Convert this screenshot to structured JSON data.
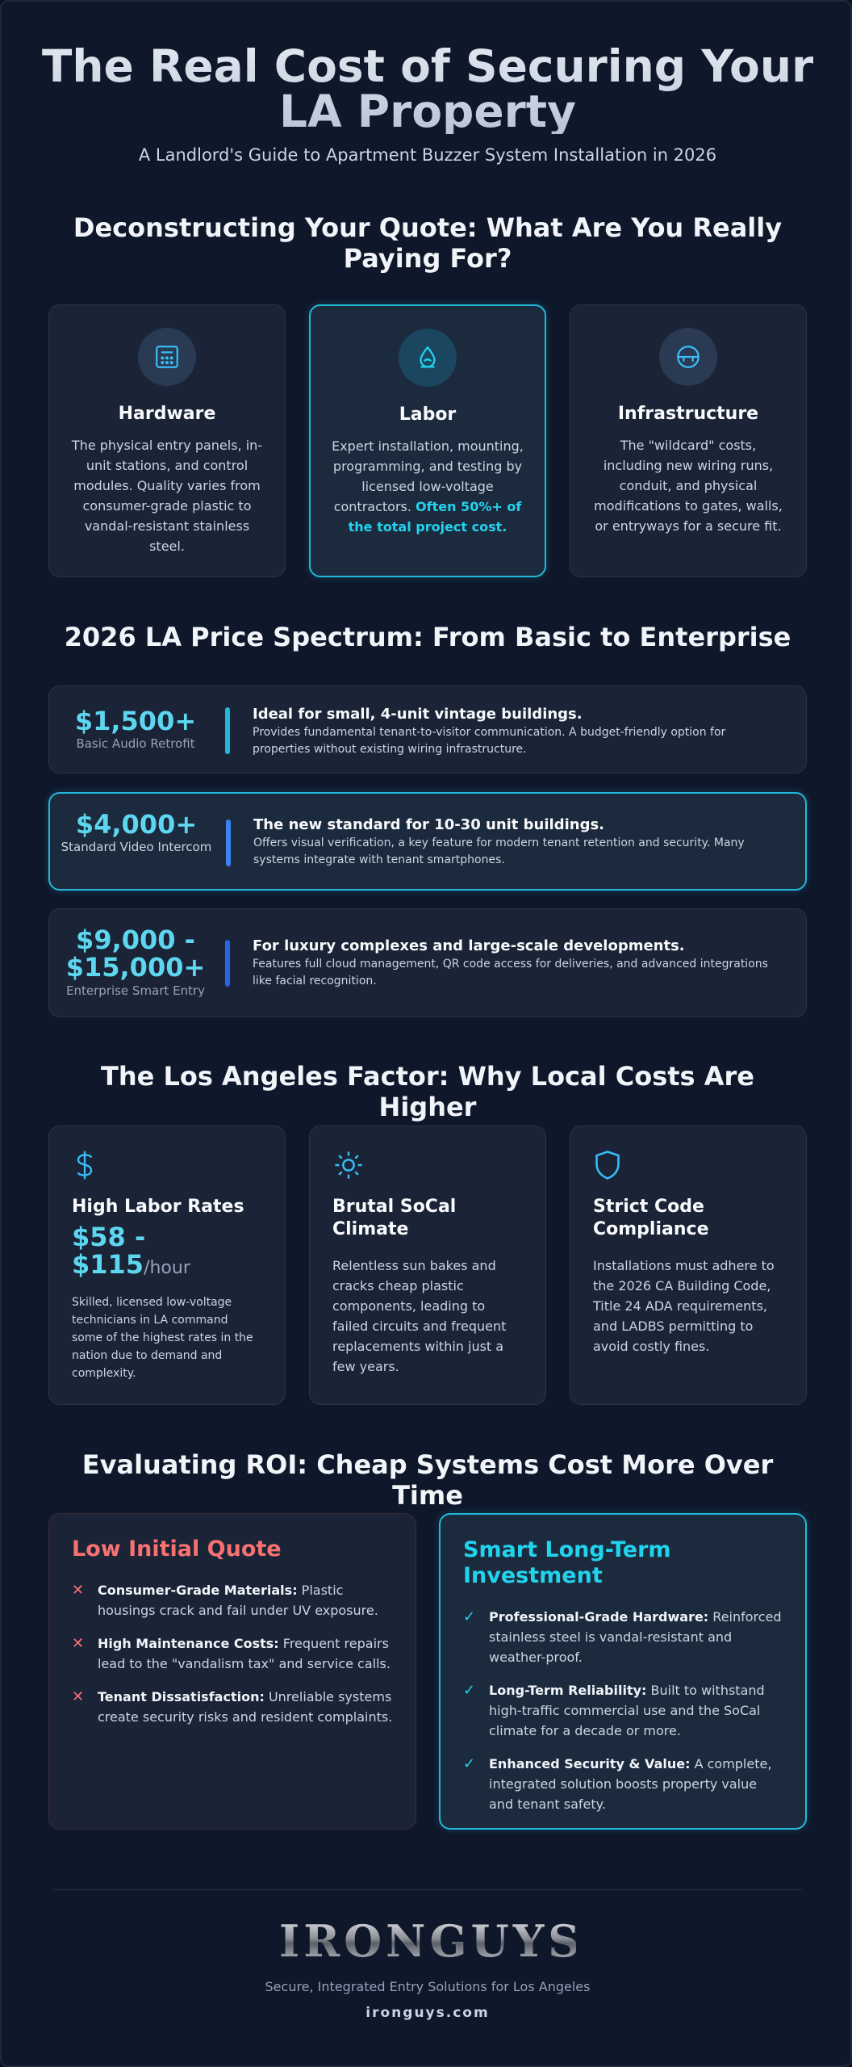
{
  "header": {
    "title": "The Real Cost of Securing Your LA Property",
    "subtitle": "A Landlord's Guide to Apartment Buzzer System Installation in 2026"
  },
  "quote_section": {
    "heading": "Deconstructing Your Quote: What Are You Really Paying For?",
    "cards": [
      {
        "icon": "keypad-icon",
        "title": "Hardware",
        "desc": "The physical entry panels, in-unit stations, and control modules. Quality varies from consumer-grade plastic to vandal-resistant stainless steel.",
        "emphasis": ""
      },
      {
        "icon": "labor-icon",
        "title": "Labor",
        "desc": "Expert installation, mounting, programming, and testing by licensed low-voltage contractors. ",
        "emphasis": "Often 50%+ of the total project cost."
      },
      {
        "icon": "infrastructure-icon",
        "title": "Infrastructure",
        "desc": "The \"wildcard\" costs, including new wiring runs, conduit, and physical modifications to gates, walls, or entryways for a secure fit.",
        "emphasis": ""
      }
    ]
  },
  "price_section": {
    "heading": "2026 LA Price Spectrum: From Basic to Enterprise",
    "tiers": [
      {
        "price": "$1,500+",
        "label": "Basic Audio Retrofit",
        "headline": "Ideal for small, 4-unit vintage buildings.",
        "desc": "Provides fundamental tenant-to-visitor communication. A budget-friendly option for properties without existing wiring infrastructure.",
        "bar_color": "#22b8d8"
      },
      {
        "price": "$4,000+",
        "label": "Standard Video Intercom",
        "headline": "The new standard for 10-30 unit buildings.",
        "desc": "Offers visual verification, a key feature for modern tenant retention and security. Many systems integrate with tenant smartphones.",
        "bar_color": "#3b82f6"
      },
      {
        "price": "$9,000 - $15,000+",
        "label": "Enterprise Smart Entry",
        "headline": "For luxury complexes and large-scale developments.",
        "desc": "Features full cloud management, QR code access for deliveries, and advanced integrations like facial recognition.",
        "bar_color": "#2563eb"
      }
    ]
  },
  "factor_section": {
    "heading": "The Los Angeles Factor: Why Local Costs Are Higher",
    "cards": [
      {
        "icon": "dollar-icon",
        "title": "High Labor Rates",
        "rate": "$58 - $115",
        "unit": "/hour",
        "desc": "Skilled, licensed low-voltage technicians in LA command some of the highest rates in the nation due to demand and complexity."
      },
      {
        "icon": "sun-icon",
        "title": "Brutal SoCal Climate",
        "desc": "Relentless sun bakes and cracks cheap plastic components, leading to failed circuits and frequent replacements within just a few years."
      },
      {
        "icon": "shield-icon",
        "title": "Strict Code Compliance",
        "desc": "Installations must adhere to the 2026 CA Building Code, Title 24 ADA requirements, and LADBS permitting to avoid costly fines."
      }
    ]
  },
  "roi_section": {
    "heading": "Evaluating ROI: Cheap Systems Cost More Over Time",
    "cheap": {
      "title": "Low Initial Quote",
      "color": "#f87171",
      "items": [
        {
          "bold": "Consumer-Grade Materials:",
          "text": " Plastic housings crack and fail under UV exposure."
        },
        {
          "bold": "High Maintenance Costs:",
          "text": " Frequent repairs lead to the \"vandalism tax\" and service calls."
        },
        {
          "bold": "Tenant Dissatisfaction:",
          "text": " Unreliable systems create security risks and resident complaints."
        }
      ]
    },
    "smart": {
      "title": "Smart Long-Term Investment",
      "color": "#22d3ee",
      "items": [
        {
          "bold": "Professional-Grade Hardware:",
          "text": " Reinforced stainless steel is vandal-resistant and weather-proof."
        },
        {
          "bold": "Long-Term Reliability:",
          "text": " Built to withstand high-traffic commercial use and the SoCal climate for a decade or more."
        },
        {
          "bold": "Enhanced Security & Value:",
          "text": " A complete, integrated solution boosts property value and tenant safety."
        }
      ]
    }
  },
  "footer": {
    "logo": "IRONGUYS",
    "tagline": "Secure, Integrated Entry Solutions for Los Angeles",
    "site": "ironguys.com"
  }
}
